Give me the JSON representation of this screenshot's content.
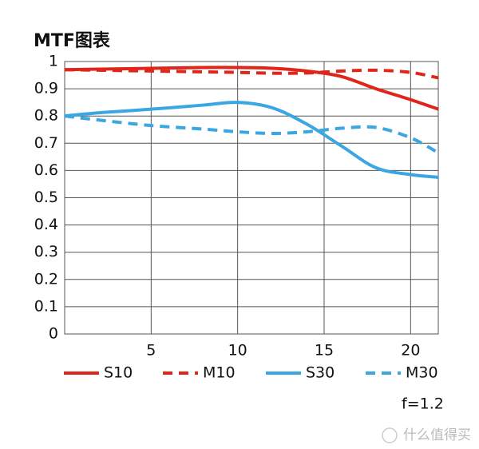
{
  "chart_data": {
    "type": "line",
    "title": "MTF图表",
    "x": [
      0,
      2,
      5,
      8,
      10,
      12,
      14,
      16,
      18,
      20,
      21.6
    ],
    "series": [
      {
        "name": "S10",
        "color": "#e0251b",
        "dashed": false,
        "values": [
          0.97,
          0.972,
          0.975,
          0.978,
          0.978,
          0.975,
          0.965,
          0.945,
          0.9,
          0.86,
          0.825
        ]
      },
      {
        "name": "M10",
        "color": "#e0251b",
        "dashed": true,
        "values": [
          0.97,
          0.968,
          0.965,
          0.962,
          0.96,
          0.957,
          0.958,
          0.965,
          0.968,
          0.96,
          0.94
        ]
      },
      {
        "name": "S30",
        "color": "#3aa6e2",
        "dashed": false,
        "values": [
          0.8,
          0.812,
          0.825,
          0.84,
          0.85,
          0.83,
          0.77,
          0.69,
          0.61,
          0.585,
          0.575
        ]
      },
      {
        "name": "M30",
        "color": "#3aa6e2",
        "dashed": true,
        "values": [
          0.8,
          0.785,
          0.765,
          0.752,
          0.742,
          0.736,
          0.742,
          0.755,
          0.758,
          0.72,
          0.665
        ]
      }
    ],
    "xlim": [
      0,
      21.6
    ],
    "ylim": [
      0,
      1
    ],
    "xticks": [
      5,
      10,
      15,
      20
    ],
    "yticks": [
      0,
      0.1,
      0.2,
      0.3,
      0.4,
      0.5,
      0.6,
      0.7,
      0.8,
      0.9,
      1
    ],
    "grid": true,
    "legend": "bottom",
    "annotation": "f=1.2",
    "watermark": "什么值得买"
  }
}
